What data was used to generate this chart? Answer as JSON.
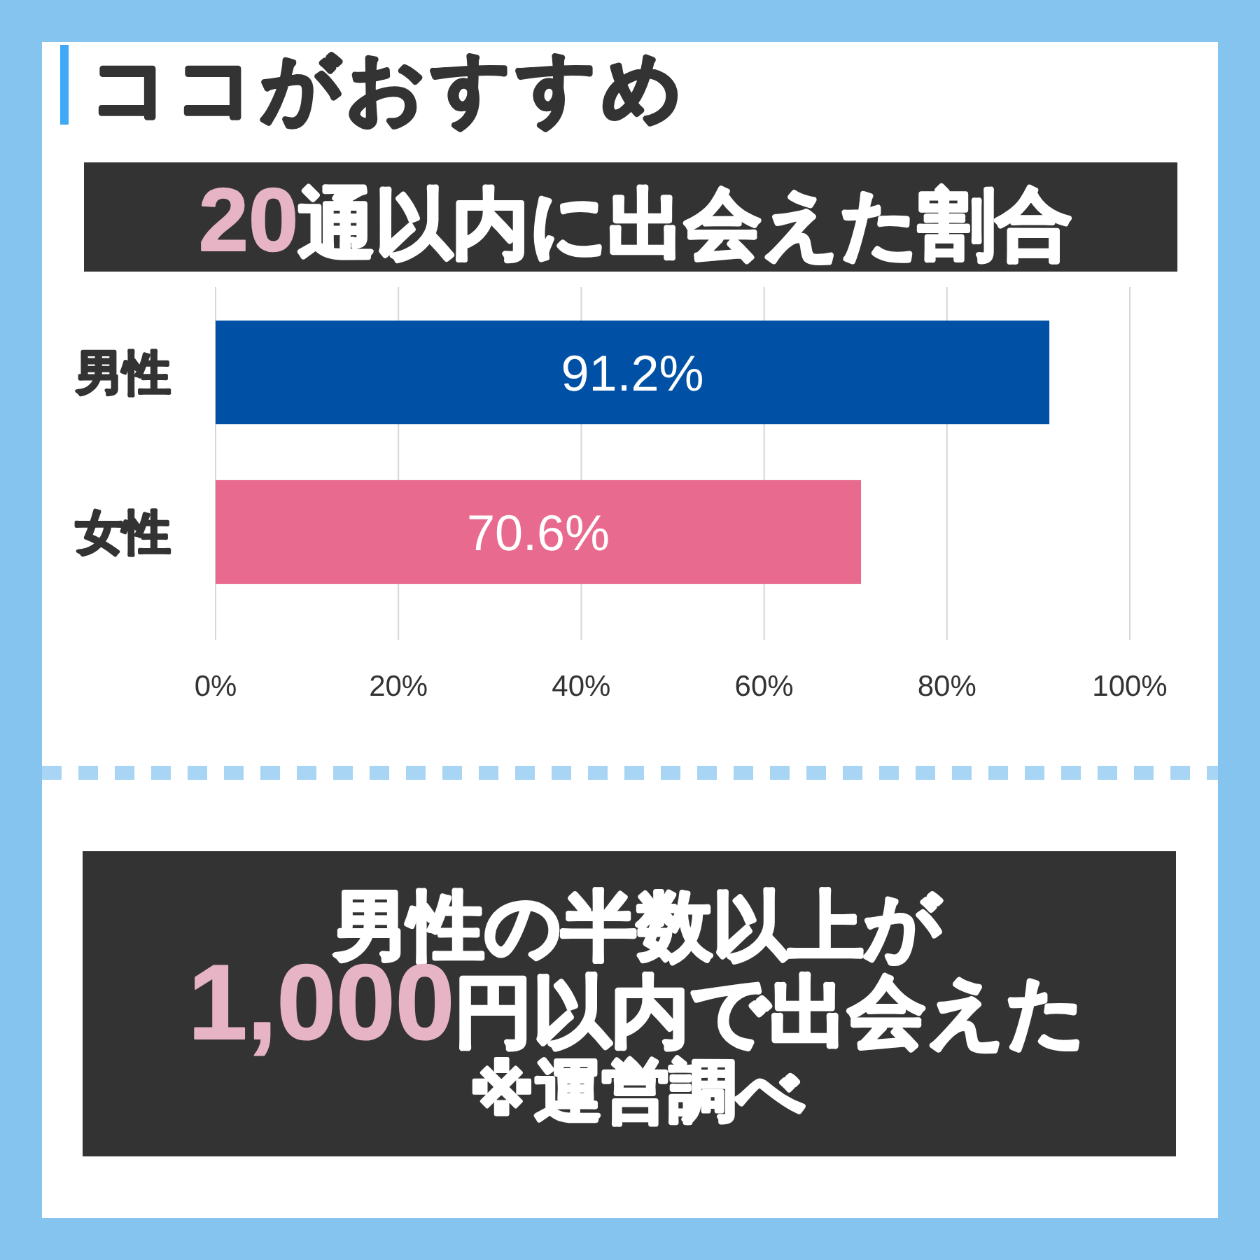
{
  "chart_data": {
    "type": "bar",
    "orientation": "horizontal",
    "title": "ココがおすすめ",
    "subtitle": "20通以内に出会えた割合",
    "categories": [
      "男性",
      "女性"
    ],
    "values": [
      91.2,
      70.6
    ],
    "colors": [
      "#0051a5",
      "#e96a8f"
    ],
    "value_labels": [
      "91.2%",
      "70.6%"
    ],
    "xlim": [
      0,
      100
    ],
    "xticks": [
      {
        "value": 0,
        "label": "0%"
      },
      {
        "value": 20,
        "label": "20%"
      },
      {
        "value": 40,
        "label": "40%"
      },
      {
        "value": 60,
        "label": "60%"
      },
      {
        "value": 80,
        "label": "80%"
      },
      {
        "value": 100,
        "label": "100%"
      }
    ],
    "grid": "x",
    "annotations": [
      "男性の半数以上が",
      "1,000円以内で出会えた",
      "※運営調べ"
    ]
  }
}
